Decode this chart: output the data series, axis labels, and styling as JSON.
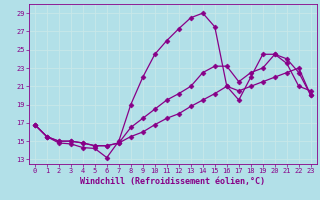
{
  "xlabel": "Windchill (Refroidissement éolien,°C)",
  "background_color": "#b2e0e8",
  "line_color": "#880088",
  "grid_color": "#c8e8e8",
  "xlim": [
    -0.5,
    23.5
  ],
  "ylim": [
    12.5,
    30
  ],
  "yticks": [
    13,
    15,
    17,
    19,
    21,
    23,
    25,
    27,
    29
  ],
  "xticks": [
    0,
    1,
    2,
    3,
    4,
    5,
    6,
    7,
    8,
    9,
    10,
    11,
    12,
    13,
    14,
    15,
    16,
    17,
    18,
    19,
    20,
    21,
    22,
    23
  ],
  "series1_x": [
    0,
    1,
    2,
    3,
    4,
    5,
    6,
    7,
    8,
    9,
    10,
    11,
    12,
    13,
    14,
    15,
    16,
    17,
    18,
    19,
    20,
    21,
    22,
    23
  ],
  "series1_y": [
    16.8,
    15.5,
    14.8,
    14.7,
    14.3,
    14.2,
    13.2,
    15.0,
    19.0,
    22.0,
    24.5,
    26.0,
    27.3,
    28.5,
    29.0,
    27.5,
    21.0,
    19.5,
    22.0,
    24.5,
    24.5,
    23.5,
    21.0,
    20.5
  ],
  "series2_x": [
    0,
    1,
    2,
    3,
    4,
    5,
    6,
    7,
    8,
    9,
    10,
    11,
    12,
    13,
    14,
    15,
    16,
    17,
    18,
    19,
    20,
    21,
    22,
    23
  ],
  "series2_y": [
    16.8,
    15.5,
    15.0,
    15.0,
    14.8,
    14.5,
    14.5,
    14.8,
    16.5,
    17.5,
    18.5,
    19.5,
    20.2,
    21.0,
    22.5,
    23.2,
    23.2,
    21.5,
    22.5,
    23.0,
    24.5,
    24.0,
    22.5,
    20.0
  ],
  "series3_x": [
    0,
    1,
    2,
    3,
    4,
    5,
    6,
    7,
    8,
    9,
    10,
    11,
    12,
    13,
    14,
    15,
    16,
    17,
    18,
    19,
    20,
    21,
    22,
    23
  ],
  "series3_y": [
    16.8,
    15.5,
    15.0,
    15.0,
    14.8,
    14.5,
    14.5,
    14.8,
    15.5,
    16.0,
    16.8,
    17.5,
    18.0,
    18.8,
    19.5,
    20.2,
    21.0,
    20.5,
    21.0,
    21.5,
    22.0,
    22.5,
    23.0,
    20.0
  ],
  "marker": "D",
  "markersize": 2.5,
  "linewidth": 0.9,
  "font_color": "#880088",
  "tick_fontsize": 5,
  "xlabel_fontsize": 6
}
